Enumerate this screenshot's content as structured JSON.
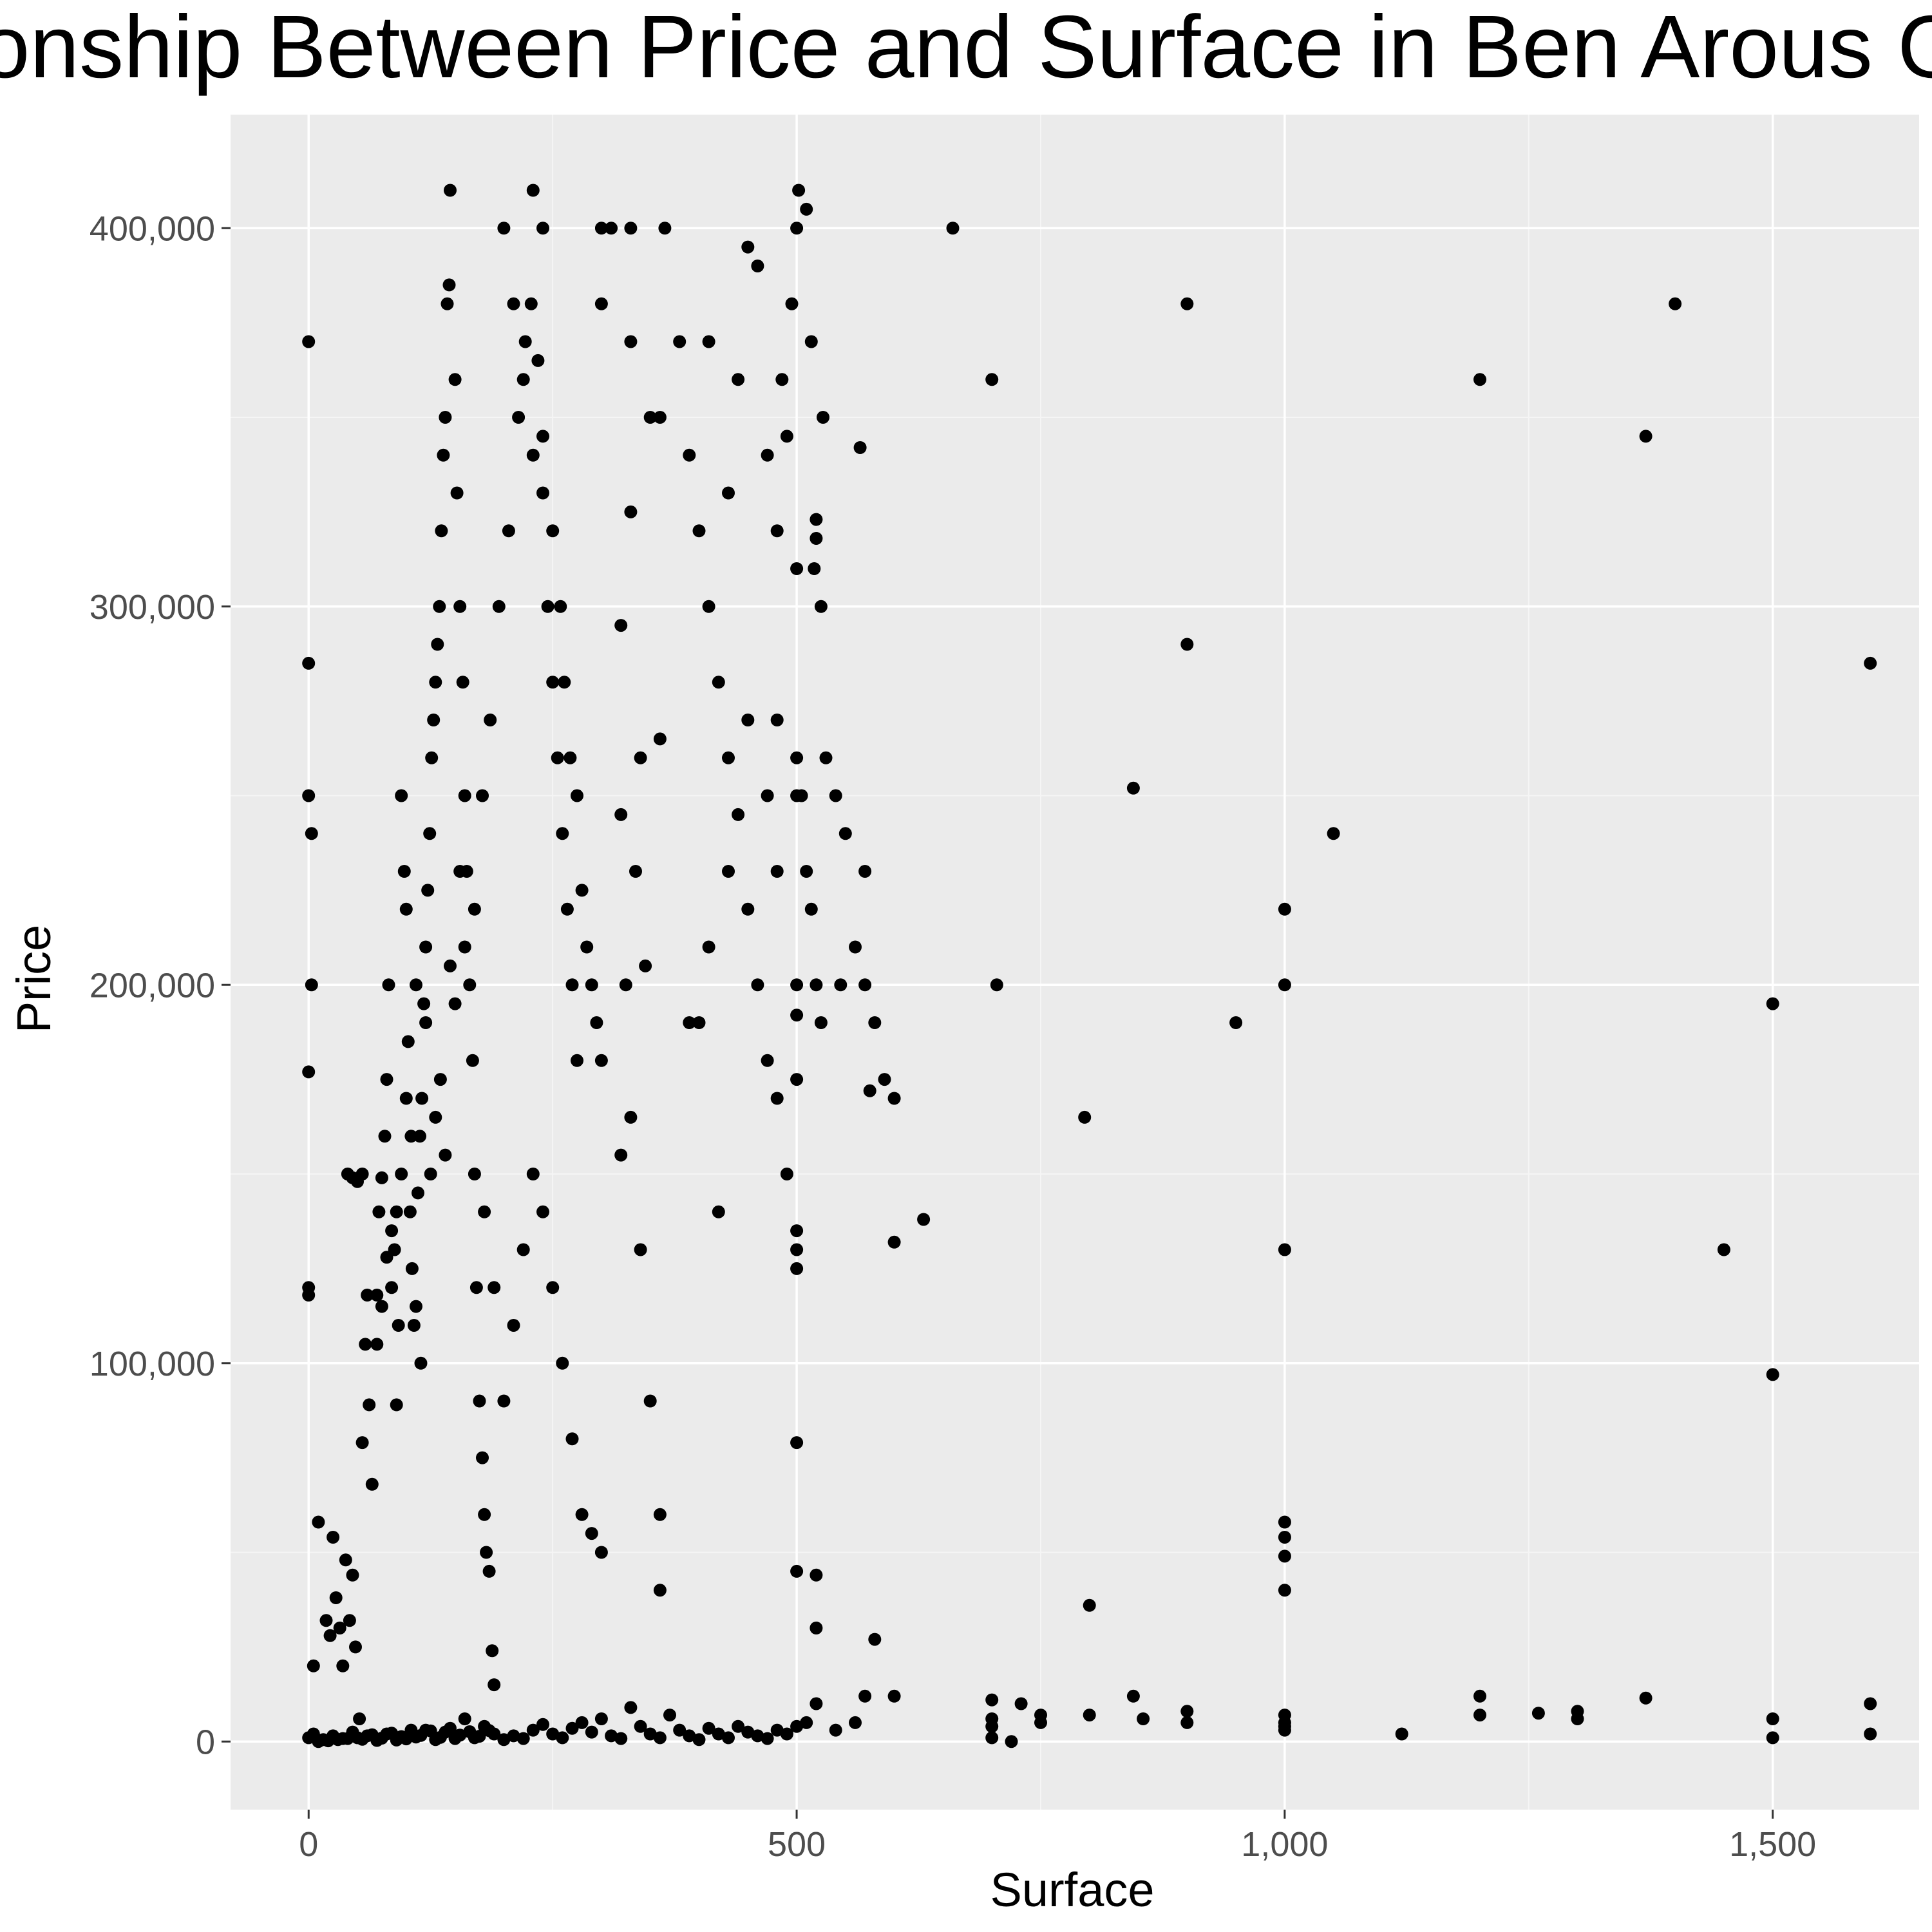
{
  "colors": {
    "panel": "#ebebeb",
    "grid_major": "#ffffff",
    "grid_minor": "#f5f5f5",
    "point": "#000000",
    "tick": "#333333",
    "tick_label": "#4d4d4d"
  },
  "chart_data": {
    "type": "scatter",
    "title": "Relationship Between Price and Surface in Ben Arous Governorate",
    "xlabel": "Surface",
    "ylabel": "Price",
    "xlim": [
      -80,
      1650
    ],
    "ylim": [
      -18000,
      430000
    ],
    "x_ticks": [
      0,
      500,
      1000,
      1500
    ],
    "x_tick_labels": [
      "0",
      "500",
      "1,000",
      "1,500"
    ],
    "y_ticks": [
      0,
      100000,
      200000,
      300000,
      400000
    ],
    "y_tick_labels": [
      "0",
      "100,000",
      "200,000",
      "300,000",
      "400,000"
    ],
    "grid": true,
    "legend": "none",
    "points": [
      [
        0,
        370000
      ],
      [
        0,
        285000
      ],
      [
        0,
        250000
      ],
      [
        3,
        240000
      ],
      [
        3,
        200000
      ],
      [
        0,
        177000
      ],
      [
        0,
        120000
      ],
      [
        0,
        118000
      ],
      [
        5,
        20000
      ],
      [
        10,
        58000
      ],
      [
        18,
        32000
      ],
      [
        22,
        28000
      ],
      [
        25,
        54000
      ],
      [
        28,
        38000
      ],
      [
        32,
        30000
      ],
      [
        35,
        20000
      ],
      [
        38,
        48000
      ],
      [
        42,
        32000
      ],
      [
        45,
        44000
      ],
      [
        48,
        25000
      ],
      [
        52,
        6000
      ],
      [
        55,
        79000
      ],
      [
        58,
        105000
      ],
      [
        62,
        89000
      ],
      [
        65,
        68000
      ],
      [
        70,
        118000
      ],
      [
        72,
        140000
      ],
      [
        75,
        149000
      ],
      [
        78,
        160000
      ],
      [
        80,
        175000
      ],
      [
        82,
        200000
      ],
      [
        85,
        120000
      ],
      [
        88,
        130000
      ],
      [
        90,
        89000
      ],
      [
        92,
        110000
      ],
      [
        95,
        250000
      ],
      [
        98,
        230000
      ],
      [
        100,
        220000
      ],
      [
        102,
        185000
      ],
      [
        104,
        140000
      ],
      [
        106,
        125000
      ],
      [
        108,
        110000
      ],
      [
        110,
        115000
      ],
      [
        112,
        145000
      ],
      [
        114,
        160000
      ],
      [
        116,
        170000
      ],
      [
        118,
        195000
      ],
      [
        120,
        210000
      ],
      [
        122,
        225000
      ],
      [
        124,
        240000
      ],
      [
        126,
        260000
      ],
      [
        128,
        270000
      ],
      [
        130,
        280000
      ],
      [
        132,
        290000
      ],
      [
        134,
        300000
      ],
      [
        136,
        320000
      ],
      [
        138,
        340000
      ],
      [
        140,
        350000
      ],
      [
        142,
        380000
      ],
      [
        144,
        385000
      ],
      [
        145,
        410000
      ],
      [
        150,
        360000
      ],
      [
        152,
        330000
      ],
      [
        155,
        300000
      ],
      [
        158,
        280000
      ],
      [
        160,
        250000
      ],
      [
        162,
        230000
      ],
      [
        165,
        200000
      ],
      [
        168,
        180000
      ],
      [
        170,
        150000
      ],
      [
        172,
        120000
      ],
      [
        175,
        90000
      ],
      [
        178,
        75000
      ],
      [
        180,
        60000
      ],
      [
        182,
        50000
      ],
      [
        185,
        45000
      ],
      [
        188,
        24000
      ],
      [
        190,
        15000
      ],
      [
        115,
        100000
      ],
      [
        125,
        150000
      ],
      [
        135,
        175000
      ],
      [
        145,
        205000
      ],
      [
        155,
        230000
      ],
      [
        100,
        170000
      ],
      [
        105,
        160000
      ],
      [
        95,
        150000
      ],
      [
        90,
        140000
      ],
      [
        85,
        135000
      ],
      [
        80,
        128000
      ],
      [
        75,
        115000
      ],
      [
        70,
        105000
      ],
      [
        60,
        118000
      ],
      [
        55,
        150000
      ],
      [
        50,
        148000
      ],
      [
        45,
        149000
      ],
      [
        40,
        150000
      ],
      [
        110,
        200000
      ],
      [
        120,
        190000
      ],
      [
        130,
        165000
      ],
      [
        140,
        155000
      ],
      [
        150,
        195000
      ],
      [
        160,
        210000
      ],
      [
        170,
        220000
      ],
      [
        178,
        250000
      ],
      [
        186,
        270000
      ],
      [
        195,
        300000
      ],
      [
        205,
        320000
      ],
      [
        215,
        350000
      ],
      [
        222,
        370000
      ],
      [
        228,
        380000
      ],
      [
        235,
        365000
      ],
      [
        240,
        345000
      ],
      [
        250,
        320000
      ],
      [
        258,
        300000
      ],
      [
        262,
        280000
      ],
      [
        268,
        260000
      ],
      [
        275,
        250000
      ],
      [
        280,
        225000
      ],
      [
        285,
        210000
      ],
      [
        290,
        200000
      ],
      [
        295,
        190000
      ],
      [
        300,
        180000
      ],
      [
        180,
        140000
      ],
      [
        190,
        120000
      ],
      [
        200,
        90000
      ],
      [
        210,
        110000
      ],
      [
        220,
        130000
      ],
      [
        230,
        150000
      ],
      [
        240,
        140000
      ],
      [
        250,
        120000
      ],
      [
        260,
        100000
      ],
      [
        270,
        80000
      ],
      [
        280,
        60000
      ],
      [
        290,
        55000
      ],
      [
        300,
        50000
      ],
      [
        200,
        400000
      ],
      [
        210,
        380000
      ],
      [
        220,
        360000
      ],
      [
        230,
        340000
      ],
      [
        240,
        330000
      ],
      [
        245,
        300000
      ],
      [
        250,
        280000
      ],
      [
        255,
        260000
      ],
      [
        260,
        240000
      ],
      [
        265,
        220000
      ],
      [
        270,
        200000
      ],
      [
        275,
        180000
      ],
      [
        330,
        400000
      ],
      [
        300,
        400000
      ],
      [
        310,
        400000
      ],
      [
        365,
        400000
      ],
      [
        230,
        410000
      ],
      [
        240,
        400000
      ],
      [
        300,
        380000
      ],
      [
        330,
        370000
      ],
      [
        360,
        350000
      ],
      [
        330,
        325000
      ],
      [
        350,
        350000
      ],
      [
        320,
        295000
      ],
      [
        340,
        260000
      ],
      [
        360,
        265000
      ],
      [
        320,
        245000
      ],
      [
        335,
        230000
      ],
      [
        325,
        200000
      ],
      [
        345,
        205000
      ],
      [
        330,
        165000
      ],
      [
        320,
        155000
      ],
      [
        340,
        130000
      ],
      [
        350,
        90000
      ],
      [
        360,
        60000
      ],
      [
        360,
        40000
      ],
      [
        380,
        370000
      ],
      [
        390,
        340000
      ],
      [
        400,
        320000
      ],
      [
        410,
        300000
      ],
      [
        420,
        280000
      ],
      [
        430,
        260000
      ],
      [
        440,
        245000
      ],
      [
        450,
        220000
      ],
      [
        460,
        200000
      ],
      [
        470,
        180000
      ],
      [
        480,
        170000
      ],
      [
        490,
        150000
      ],
      [
        500,
        130000
      ],
      [
        410,
        370000
      ],
      [
        430,
        330000
      ],
      [
        450,
        270000
      ],
      [
        470,
        250000
      ],
      [
        480,
        230000
      ],
      [
        400,
        190000
      ],
      [
        420,
        140000
      ],
      [
        390,
        190000
      ],
      [
        410,
        210000
      ],
      [
        430,
        230000
      ],
      [
        440,
        360000
      ],
      [
        450,
        395000
      ],
      [
        460,
        390000
      ],
      [
        470,
        340000
      ],
      [
        480,
        320000
      ],
      [
        485,
        360000
      ],
      [
        490,
        345000
      ],
      [
        500,
        310000
      ],
      [
        505,
        250000
      ],
      [
        510,
        230000
      ],
      [
        515,
        220000
      ],
      [
        520,
        200000
      ],
      [
        525,
        190000
      ],
      [
        480,
        270000
      ],
      [
        495,
        380000
      ],
      [
        500,
        400000
      ],
      [
        502,
        410000
      ],
      [
        510,
        405000
      ],
      [
        515,
        370000
      ],
      [
        520,
        318000
      ],
      [
        525,
        300000
      ],
      [
        530,
        260000
      ],
      [
        540,
        250000
      ],
      [
        550,
        240000
      ],
      [
        560,
        210000
      ],
      [
        570,
        200000
      ],
      [
        580,
        190000
      ],
      [
        590,
        175000
      ],
      [
        600,
        170000
      ],
      [
        500,
        260000
      ],
      [
        500,
        250000
      ],
      [
        500,
        200000
      ],
      [
        500,
        192000
      ],
      [
        500,
        175000
      ],
      [
        500,
        135000
      ],
      [
        500,
        125000
      ],
      [
        500,
        79000
      ],
      [
        520,
        323000
      ],
      [
        518,
        310000
      ],
      [
        527,
        350000
      ],
      [
        545,
        200000
      ],
      [
        565,
        342000
      ],
      [
        570,
        230000
      ],
      [
        575,
        172000
      ],
      [
        600,
        132000
      ],
      [
        630,
        138000
      ],
      [
        660,
        400000
      ],
      [
        700,
        360000
      ],
      [
        705,
        200000
      ],
      [
        795,
        165000
      ],
      [
        800,
        36000
      ],
      [
        845,
        252000
      ],
      [
        900,
        380000
      ],
      [
        900,
        290000
      ],
      [
        950,
        190000
      ],
      [
        1000,
        220000
      ],
      [
        1000,
        200000
      ],
      [
        1000,
        130000
      ],
      [
        1000,
        58000
      ],
      [
        1000,
        54000
      ],
      [
        1000,
        49000
      ],
      [
        1000,
        40000
      ],
      [
        1050,
        240000
      ],
      [
        1200,
        360000
      ],
      [
        1370,
        345000
      ],
      [
        1400,
        380000
      ],
      [
        1450,
        130000
      ],
      [
        1500,
        195000
      ],
      [
        1500,
        97000
      ],
      [
        1600,
        285000
      ],
      [
        500,
        45000
      ],
      [
        520,
        30000
      ],
      [
        580,
        27000
      ],
      [
        520,
        44000
      ],
      [
        10,
        0
      ],
      [
        20,
        200
      ],
      [
        30,
        500
      ],
      [
        40,
        800
      ],
      [
        50,
        1000
      ],
      [
        60,
        1500
      ],
      [
        70,
        300
      ],
      [
        80,
        2000
      ],
      [
        90,
        400
      ],
      [
        100,
        700
      ],
      [
        110,
        1200
      ],
      [
        120,
        3000
      ],
      [
        130,
        500
      ],
      [
        140,
        2500
      ],
      [
        150,
        800
      ],
      [
        160,
        6000
      ],
      [
        170,
        1000
      ],
      [
        180,
        4000
      ],
      [
        190,
        2000
      ],
      [
        200,
        500
      ],
      [
        210,
        1500
      ],
      [
        220,
        800
      ],
      [
        230,
        3000
      ],
      [
        240,
        4500
      ],
      [
        250,
        2000
      ],
      [
        260,
        1000
      ],
      [
        270,
        3500
      ],
      [
        280,
        5000
      ],
      [
        290,
        2500
      ],
      [
        300,
        6000
      ],
      [
        310,
        1500
      ],
      [
        320,
        800
      ],
      [
        330,
        9000
      ],
      [
        340,
        4000
      ],
      [
        350,
        2000
      ],
      [
        360,
        1000
      ],
      [
        370,
        7000
      ],
      [
        380,
        3000
      ],
      [
        390,
        1500
      ],
      [
        400,
        500
      ],
      [
        410,
        3500
      ],
      [
        420,
        2000
      ],
      [
        430,
        1000
      ],
      [
        440,
        4000
      ],
      [
        450,
        2500
      ],
      [
        460,
        1500
      ],
      [
        470,
        800
      ],
      [
        480,
        3000
      ],
      [
        490,
        2000
      ],
      [
        500,
        4000
      ],
      [
        510,
        5000
      ],
      [
        520,
        10000
      ],
      [
        540,
        3000
      ],
      [
        560,
        5000
      ],
      [
        570,
        12000
      ],
      [
        600,
        12000
      ],
      [
        700,
        11000
      ],
      [
        700,
        6000
      ],
      [
        700,
        4000
      ],
      [
        700,
        1000
      ],
      [
        720,
        0
      ],
      [
        730,
        10000
      ],
      [
        750,
        7000
      ],
      [
        750,
        5000
      ],
      [
        800,
        7000
      ],
      [
        845,
        12000
      ],
      [
        855,
        6000
      ],
      [
        900,
        8000
      ],
      [
        900,
        5000
      ],
      [
        1000,
        7000
      ],
      [
        1000,
        5000
      ],
      [
        1000,
        4000
      ],
      [
        1000,
        3000
      ],
      [
        1120,
        2000
      ],
      [
        1200,
        12000
      ],
      [
        1200,
        7000
      ],
      [
        1260,
        7500
      ],
      [
        1300,
        8000
      ],
      [
        1300,
        6000
      ],
      [
        1370,
        11500
      ],
      [
        1500,
        6000
      ],
      [
        1500,
        1000
      ],
      [
        1600,
        10000
      ],
      [
        1600,
        2000
      ],
      [
        0,
        1000
      ],
      [
        5,
        2000
      ],
      [
        15,
        500
      ],
      [
        25,
        1500
      ],
      [
        35,
        800
      ],
      [
        45,
        2500
      ],
      [
        55,
        600
      ],
      [
        65,
        1800
      ],
      [
        75,
        900
      ],
      [
        85,
        2200
      ],
      [
        95,
        1300
      ],
      [
        105,
        3000
      ],
      [
        115,
        1600
      ],
      [
        125,
        2800
      ],
      [
        135,
        1100
      ],
      [
        145,
        3500
      ],
      [
        155,
        1700
      ],
      [
        165,
        2600
      ],
      [
        175,
        1400
      ],
      [
        185,
        2900
      ]
    ]
  }
}
